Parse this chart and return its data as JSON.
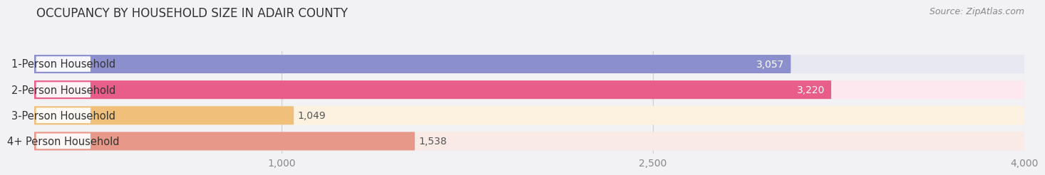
{
  "title": "OCCUPANCY BY HOUSEHOLD SIZE IN ADAIR COUNTY",
  "source": "Source: ZipAtlas.com",
  "categories": [
    "1-Person Household",
    "2-Person Household",
    "3-Person Household",
    "4+ Person Household"
  ],
  "values": [
    3057,
    3220,
    1049,
    1538
  ],
  "bar_colors": [
    "#8b8fce",
    "#e85d8a",
    "#f0c07a",
    "#e89888"
  ],
  "bar_bg_colors": [
    "#e8e8f2",
    "#fde8f0",
    "#fdf2e0",
    "#faeae6"
  ],
  "label_colors": [
    "white",
    "white",
    "#555555",
    "#555555"
  ],
  "xlim": [
    0,
    4000
  ],
  "xticks": [
    1000,
    2500,
    4000
  ],
  "background_color": "#f2f2f5",
  "title_fontsize": 12,
  "source_fontsize": 9,
  "label_fontsize": 10.5,
  "value_fontsize": 10,
  "tick_fontsize": 10
}
